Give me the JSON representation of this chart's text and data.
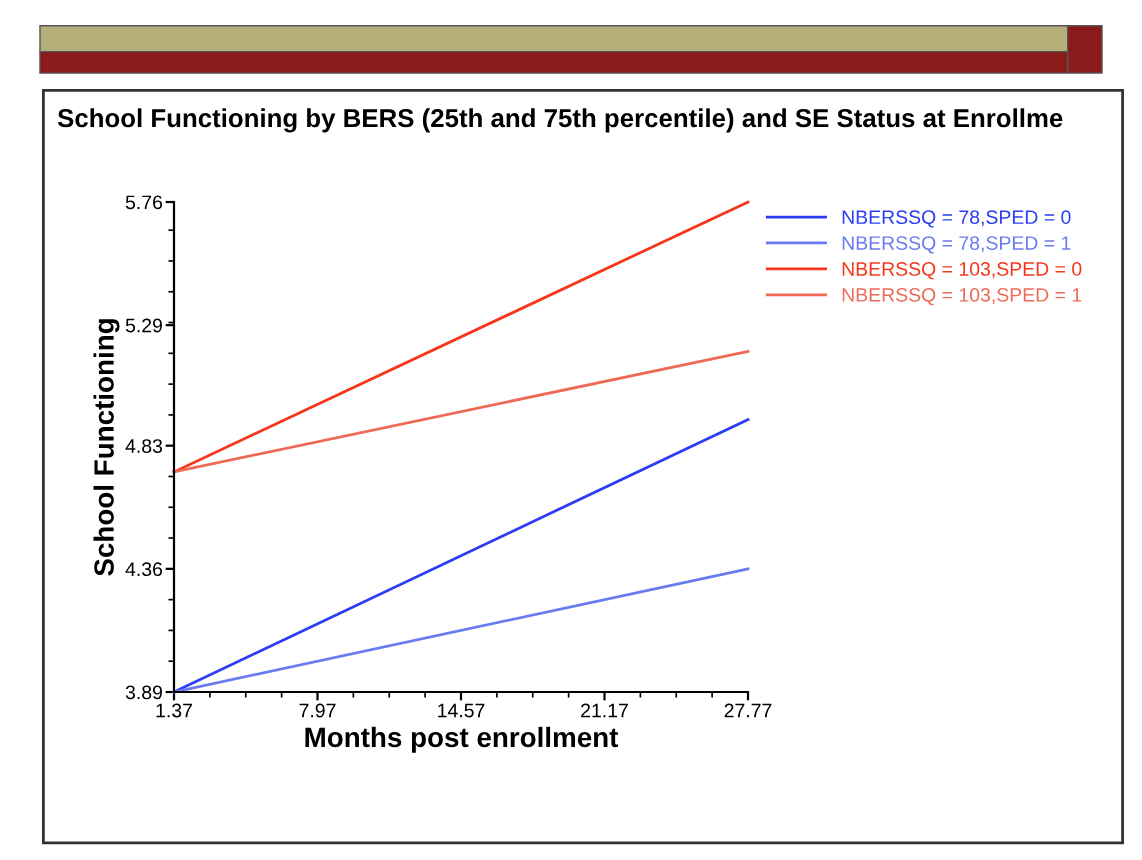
{
  "chart_data": {
    "type": "line",
    "title": "School Functioning by BERS (25th and 75th percentile) and SE Status at Enrollme",
    "xlabel": "Months post enrollment",
    "ylabel": "School Functioning",
    "x": [
      1.37,
      27.77
    ],
    "series": [
      {
        "name": "NBERSSQ = 78,SPED = 0",
        "color": "#2b3cf5",
        "values": [
          3.89,
          4.93
        ]
      },
      {
        "name": "NBERSSQ = 78,SPED = 1",
        "color": "#6a7af0",
        "values": [
          3.89,
          4.36
        ]
      },
      {
        "name": "NBERSSQ = 103,SPED = 0",
        "color": "#f5361b",
        "values": [
          4.73,
          5.76
        ]
      },
      {
        "name": "NBERSSQ = 103,SPED = 1",
        "color": "#ee6a55",
        "values": [
          4.73,
          5.19
        ]
      }
    ],
    "xlim": [
      1.37,
      27.77
    ],
    "xticks": [
      1.37,
      7.97,
      14.57,
      21.17,
      27.77
    ],
    "ylim": [
      3.89,
      5.76
    ],
    "yticks": [
      3.89,
      4.36,
      4.83,
      5.29,
      5.76
    ],
    "grid": false,
    "legend": "top right",
    "marker": "none",
    "line_style": "solid"
  }
}
